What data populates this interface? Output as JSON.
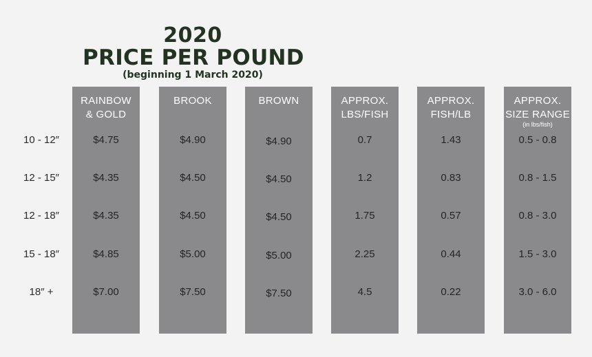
{
  "title": {
    "year": "2020",
    "main": "PRICE PER POUND",
    "subtitle": "(beginning 1 March 2020)"
  },
  "columns": [
    {
      "line1": "RAINBOW",
      "line2": "& GOLD",
      "note": ""
    },
    {
      "line1": "BROOK",
      "line2": "",
      "note": ""
    },
    {
      "line1": "BROWN",
      "line2": "",
      "note": ""
    },
    {
      "line1": "APPROX.",
      "line2": "LBS/FISH",
      "note": ""
    },
    {
      "line1": "APPROX.",
      "line2": "FISH/LB",
      "note": ""
    },
    {
      "line1": "APPROX.",
      "line2": "SIZE RANGE",
      "note": "(in lbs/fish)"
    }
  ],
  "rows": [
    {
      "label": "10 - 12″",
      "values": [
        "$4.75",
        "$4.90",
        "$4.90",
        "0.7",
        "1.43",
        "0.5 - 0.8"
      ]
    },
    {
      "label": "12 - 15″",
      "values": [
        "$4.35",
        "$4.50",
        "$4.50",
        "1.2",
        "0.83",
        "0.8 - 1.5"
      ]
    },
    {
      "label": "12 - 18″",
      "values": [
        "$4.35",
        "$4.50",
        "$4.50",
        "1.75",
        "0.57",
        "0.8 - 3.0"
      ]
    },
    {
      "label": "15 - 18″",
      "values": [
        "$4.85",
        "$5.00",
        "$5.00",
        "2.25",
        "0.44",
        "1.5 - 3.0"
      ]
    },
    {
      "label": "18″ +",
      "values": [
        "$7.00",
        "$7.50",
        "$7.50",
        "4.5",
        "0.22",
        "3.0 - 6.0"
      ]
    }
  ],
  "colors": {
    "background": "#f3f3f3",
    "column_fill": "#8a8a8c",
    "title": "#223322",
    "header_text": "#ffffff",
    "cell_text": "#252525"
  }
}
